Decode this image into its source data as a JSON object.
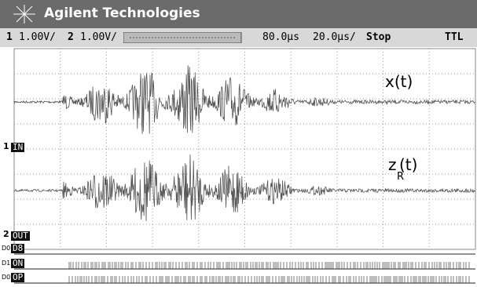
{
  "header": {
    "brand": "Agilent Technologies"
  },
  "status": {
    "ch1": "1",
    "ch1_scale": "1.00V/",
    "ch2": "2",
    "ch2_scale": "1.00V/",
    "delay": "80.0µs",
    "timebase": "20.0µs/",
    "run_state": "Stop",
    "trigger": "TTL"
  },
  "traces": {
    "x_label": "x(t)",
    "z_label": "z",
    "z_sub": "R",
    "z_suffix": "(t)"
  },
  "channels": [
    {
      "number": "1",
      "label": "IN"
    },
    {
      "number": "2",
      "label": "OUT"
    }
  ],
  "digital": [
    {
      "prefix": "D0",
      "label": "D8"
    },
    {
      "prefix": "D1",
      "label": "ON"
    },
    {
      "prefix": "D0",
      "label": "OP"
    }
  ]
}
